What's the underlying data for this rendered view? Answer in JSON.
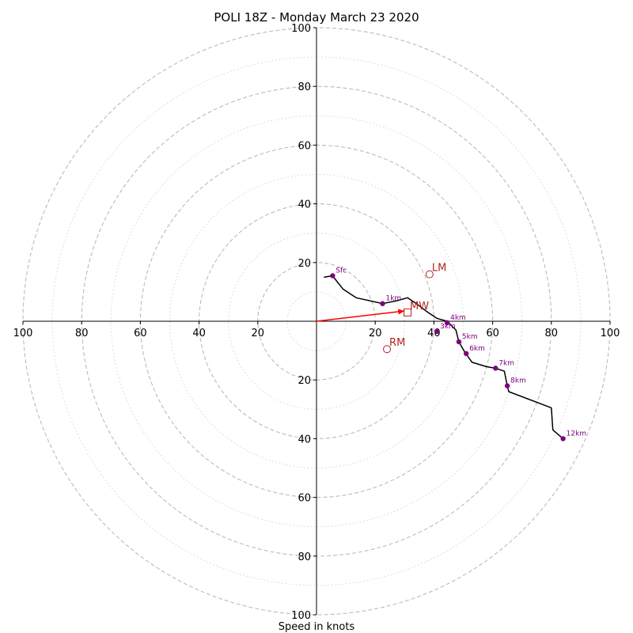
{
  "chart_data": {
    "type": "hodograph",
    "title": "POLI 18Z - Monday March 23 2020",
    "xlabel": "Speed in knots",
    "axis_range": [
      -100,
      100
    ],
    "major_rings": [
      20,
      40,
      60,
      80,
      100
    ],
    "minor_rings": [
      10,
      30,
      50,
      70,
      90
    ],
    "x_tick_labels": [
      "100",
      "80",
      "60",
      "40",
      "20",
      "20",
      "40",
      "60",
      "80",
      "100"
    ],
    "y_tick_labels": [
      "100",
      "80",
      "60",
      "40",
      "20",
      "20",
      "40",
      "60",
      "80",
      "100"
    ],
    "hodograph": [
      [
        2.5,
        15
      ],
      [
        5.5,
        15.5
      ],
      [
        7,
        13.5
      ],
      [
        9,
        11
      ],
      [
        13.5,
        8
      ],
      [
        22.5,
        6
      ],
      [
        27.5,
        7
      ],
      [
        31,
        8
      ],
      [
        34,
        6
      ],
      [
        38,
        3
      ],
      [
        41,
        1
      ],
      [
        44.5,
        0
      ],
      [
        47.5,
        -3
      ],
      [
        48.5,
        -7
      ],
      [
        50.5,
        -10.5
      ],
      [
        53,
        -14
      ],
      [
        58,
        -15.5
      ],
      [
        61,
        -16
      ],
      [
        64,
        -17
      ],
      [
        65,
        -22
      ],
      [
        65.5,
        -24
      ],
      [
        80,
        -29.5
      ],
      [
        80.5,
        -37
      ],
      [
        84,
        -40
      ]
    ],
    "height_markers": [
      {
        "label": "Sfc",
        "u": 5.5,
        "v": 15.5
      },
      {
        "label": "1km",
        "u": 22.5,
        "v": 6
      },
      {
        "label": "3km",
        "u": 41,
        "v": -3.5
      },
      {
        "label": "4km",
        "u": 44.5,
        "v": -0.5
      },
      {
        "label": "5km",
        "u": 48.5,
        "v": -7
      },
      {
        "label": "6km",
        "u": 51,
        "v": -11
      },
      {
        "label": "7km",
        "u": 61,
        "v": -16
      },
      {
        "label": "8km",
        "u": 65,
        "v": -22
      },
      {
        "label": "12km",
        "u": 84,
        "v": -40
      }
    ],
    "storm_motions": [
      {
        "label": "LM",
        "u": 38.5,
        "v": 16
      },
      {
        "label": "RM",
        "u": 24,
        "v": -9.5
      }
    ],
    "mean_wind": {
      "label": "MW",
      "u": 31,
      "v": 3
    },
    "mean_wind_vector": {
      "u": 30,
      "v": 3.5
    },
    "colors": {
      "hodograph": "#000000",
      "markers": "#800080",
      "storm_motion": "#b22222",
      "vector": "#ff0000",
      "major_ring": "#bbbbbb",
      "minor_ring": "#d5d5d5",
      "axis": "#000000"
    }
  }
}
